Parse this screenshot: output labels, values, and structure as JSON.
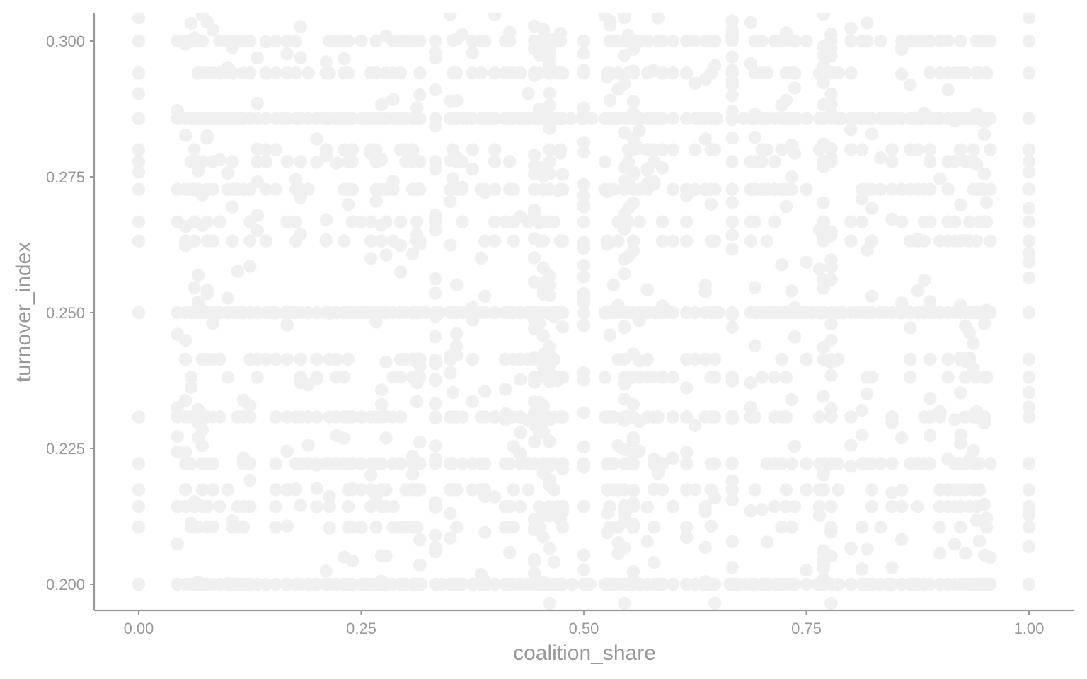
{
  "chart_data": {
    "type": "scatter",
    "title": "",
    "xlabel": "coalition_share",
    "ylabel": "turnover_index",
    "xlim": [
      -0.05,
      1.05
    ],
    "ylim": [
      0.1955,
      0.305
    ],
    "x_ticks": [
      0.0,
      0.25,
      0.5,
      0.75,
      1.0
    ],
    "x_tick_labels": [
      "0.00",
      "0.25",
      "0.50",
      "0.75",
      "1.00"
    ],
    "y_ticks": [
      0.2,
      0.225,
      0.25,
      0.275,
      0.3
    ],
    "y_tick_labels": [
      "0.200",
      "0.225",
      "0.250",
      "0.275",
      "0.300"
    ],
    "grid": false,
    "legend": "none",
    "point_color": "#f0f0f0",
    "axis_color": "#999999",
    "dense_rows": [
      0.2,
      0.25,
      0.2857
    ],
    "medium_rows": [
      0.2222,
      0.2308,
      0.2727,
      0.2941,
      0.3
    ],
    "light_rows": [
      0.2105,
      0.2143,
      0.2174,
      0.2381,
      0.2414,
      0.2632,
      0.2667,
      0.2778,
      0.28
    ],
    "x_grid_fractions": [
      0,
      0.0435,
      0.0526,
      0.0588,
      0.0625,
      0.0667,
      0.0714,
      0.0769,
      0.0833,
      0.0909,
      0.1,
      0.1053,
      0.1111,
      0.1176,
      0.125,
      0.1333,
      0.1429,
      0.1538,
      0.1667,
      0.1765,
      0.1818,
      0.1905,
      0.2,
      0.2105,
      0.2143,
      0.2222,
      0.2308,
      0.2353,
      0.24,
      0.25,
      0.2609,
      0.2667,
      0.2727,
      0.2778,
      0.2857,
      0.2941,
      0.3,
      0.3077,
      0.3125,
      0.3158,
      0.3333,
      0.35,
      0.3529,
      0.3571,
      0.3636,
      0.375,
      0.3846,
      0.3889,
      0.4,
      0.4118,
      0.4167,
      0.4211,
      0.4286,
      0.4375,
      0.4444,
      0.45,
      0.4545,
      0.4615,
      0.4667,
      0.4706,
      0.4737,
      0.4762,
      0.5,
      0.5238,
      0.5263,
      0.5294,
      0.5333,
      0.5385,
      0.5455,
      0.55,
      0.5556,
      0.5625,
      0.5714,
      0.5789,
      0.5833,
      0.5882,
      0.6,
      0.6154,
      0.625,
      0.6364,
      0.6429,
      0.6471,
      0.6667,
      0.6875,
      0.6923,
      0.7,
      0.7059,
      0.7143,
      0.7222,
      0.7273,
      0.7333,
      0.7368,
      0.75,
      0.7647,
      0.7692,
      0.7778,
      0.7857,
      0.8,
      0.8125,
      0.8182,
      0.8235,
      0.8333,
      0.8462,
      0.8571,
      0.8667,
      0.875,
      0.8824,
      0.8889,
      0.9,
      0.9091,
      0.9167,
      0.9231,
      0.9286,
      0.9333,
      0.9375,
      0.9412,
      0.9444,
      0.95,
      0.9524,
      0.9565,
      1.0
    ],
    "edge_column_y": [
      0.2,
      0.2069,
      0.2105,
      0.2128,
      0.2143,
      0.2174,
      0.2222,
      0.2308,
      0.2326,
      0.2353,
      0.2381,
      0.25,
      0.2564,
      0.2593,
      0.2609,
      0.2632,
      0.2667,
      0.2692,
      0.2727,
      0.2759,
      0.2778,
      0.28,
      0.2857,
      0.2941,
      0.3,
      0.3043,
      0.3077
    ]
  }
}
